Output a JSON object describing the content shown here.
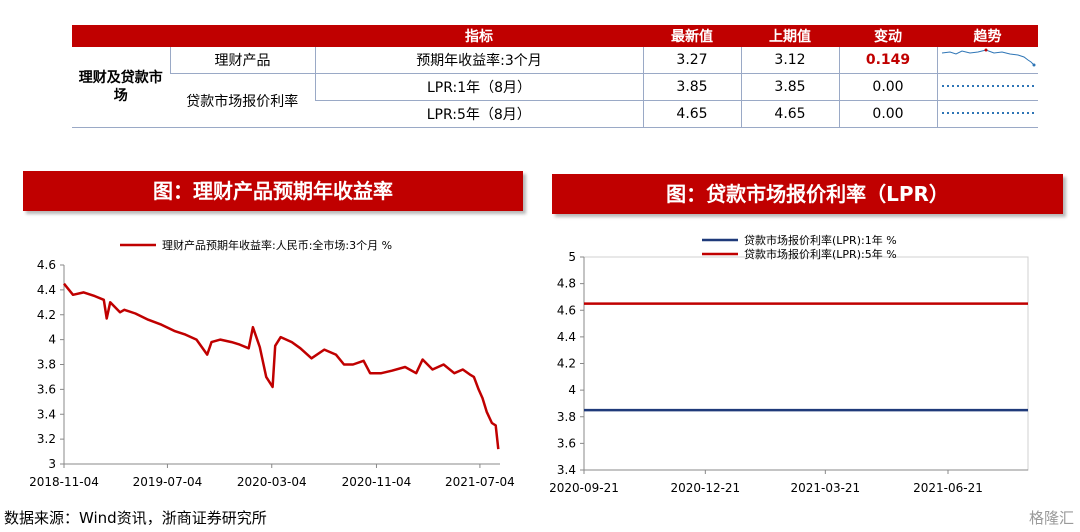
{
  "table": {
    "headers": [
      "指标",
      "最新值",
      "上期值",
      "变动",
      "趋势"
    ],
    "category": "理财及贷款市场",
    "rows": [
      {
        "group": "理财产品",
        "indicator": "预期年收益率:3个月",
        "latest": "3.27",
        "previous": "3.12",
        "change": "0.149",
        "change_highlight": true
      },
      {
        "group": "贷款市场报价利率",
        "indicator": "LPR:1年（8月）",
        "latest": "3.85",
        "previous": "3.85",
        "change": "0.00",
        "change_highlight": false
      },
      {
        "group": "",
        "indicator": "LPR:5年（8月）",
        "latest": "4.65",
        "previous": "4.65",
        "change": "0.00",
        "change_highlight": false
      }
    ]
  },
  "left_title": "图：理财产品预期年收益率",
  "right_title": "图：贷款市场报价利率（LPR）",
  "source": "数据来源：Wind资讯，浙商证券研究所",
  "watermark": "格隆汇",
  "colors": {
    "accent": "#c00000",
    "navy": "#1f3a7a",
    "spark": "#2e75b6"
  },
  "chart_data": [
    {
      "type": "line",
      "legend_position": "top",
      "xlabel": "",
      "ylabel": "",
      "ylim": [
        3,
        4.6
      ],
      "yticks": [
        3,
        3.2,
        3.4,
        3.6,
        3.8,
        4,
        4.2,
        4.4,
        4.6
      ],
      "ytick_labels": [
        "3",
        "3.2",
        "3.4",
        "3.6",
        "3.8",
        "4",
        "4.2",
        "4.4",
        "4.6"
      ],
      "xlim": [
        "2018-11-04",
        "2021-08-20"
      ],
      "xticks": [
        "2018-11-04",
        "2019-07-04",
        "2020-03-04",
        "2020-11-04",
        "2021-07-04"
      ],
      "xtick_labels": [
        "2018-11-04",
        "2019-07-04",
        "2020-03-04",
        "2020-11-04",
        "2021-07-04"
      ],
      "series": [
        {
          "name": "理财产品预期年收益率:人民币:全市场:3个月 %",
          "color": "#c00000",
          "x": [
            "2018-11-04",
            "2018-11-25",
            "2018-12-20",
            "2019-01-15",
            "2019-02-05",
            "2019-02-12",
            "2019-02-20",
            "2019-03-15",
            "2019-03-25",
            "2019-04-20",
            "2019-05-20",
            "2019-06-20",
            "2019-07-20",
            "2019-08-15",
            "2019-09-10",
            "2019-10-05",
            "2019-10-15",
            "2019-11-05",
            "2019-12-01",
            "2019-12-20",
            "2020-01-10",
            "2020-01-20",
            "2020-02-05",
            "2020-02-20",
            "2020-03-06",
            "2020-03-12",
            "2020-03-25",
            "2020-04-20",
            "2020-05-10",
            "2020-06-05",
            "2020-07-05",
            "2020-08-01",
            "2020-08-20",
            "2020-09-10",
            "2020-10-05",
            "2020-10-20",
            "2020-11-15",
            "2020-12-10",
            "2021-01-10",
            "2021-02-05",
            "2021-02-20",
            "2021-03-15",
            "2021-04-10",
            "2021-05-05",
            "2021-05-25",
            "2021-06-10",
            "2021-06-20",
            "2021-07-01",
            "2021-07-10",
            "2021-07-20",
            "2021-08-01",
            "2021-08-10",
            "2021-08-16"
          ],
          "values": [
            4.45,
            4.36,
            4.38,
            4.35,
            4.32,
            4.17,
            4.3,
            4.22,
            4.24,
            4.21,
            4.16,
            4.12,
            4.07,
            4.04,
            4.0,
            3.88,
            3.98,
            4.0,
            3.98,
            3.96,
            3.93,
            4.1,
            3.94,
            3.7,
            3.62,
            3.95,
            4.02,
            3.98,
            3.93,
            3.85,
            3.92,
            3.88,
            3.8,
            3.8,
            3.83,
            3.73,
            3.73,
            3.75,
            3.78,
            3.73,
            3.84,
            3.76,
            3.8,
            3.73,
            3.76,
            3.72,
            3.7,
            3.6,
            3.53,
            3.42,
            3.33,
            3.31,
            3.12
          ]
        }
      ]
    },
    {
      "type": "line",
      "legend_position": "top",
      "xlabel": "",
      "ylabel": "",
      "ylim": [
        3.4,
        5
      ],
      "yticks": [
        3.4,
        3.6,
        3.8,
        4,
        4.2,
        4.4,
        4.6,
        4.8,
        5
      ],
      "ytick_labels": [
        "3.4",
        "3.6",
        "3.8",
        "4",
        "4.2",
        "4.4",
        "4.6",
        "4.8",
        "5"
      ],
      "xlim": [
        "2020-09-21",
        "2021-08-20"
      ],
      "xticks": [
        "2020-09-21",
        "2020-12-21",
        "2021-03-21",
        "2021-06-21"
      ],
      "xtick_labels": [
        "2020-09-21",
        "2020-12-21",
        "2021-03-21",
        "2021-06-21"
      ],
      "series": [
        {
          "name": "贷款市场报价利率(LPR):1年 %",
          "color": "#1f3a7a",
          "x": [
            "2020-09-21",
            "2021-08-20"
          ],
          "values": [
            3.85,
            3.85
          ]
        },
        {
          "name": "贷款市场报价利率(LPR):5年 %",
          "color": "#c00000",
          "x": [
            "2020-09-21",
            "2021-08-20"
          ],
          "values": [
            4.65,
            4.65
          ]
        }
      ]
    }
  ]
}
